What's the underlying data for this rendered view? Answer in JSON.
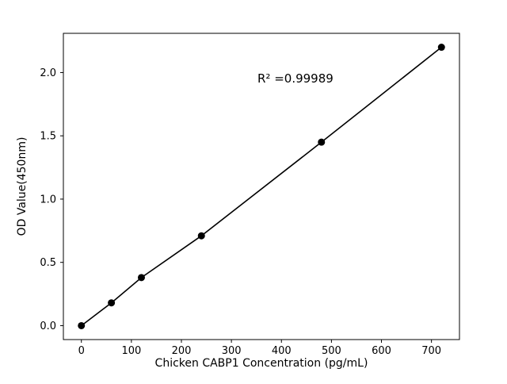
{
  "chart_data": {
    "type": "scatter",
    "title": "",
    "x": [
      0,
      60,
      120,
      240,
      480,
      720
    ],
    "y": [
      0.0,
      0.18,
      0.38,
      0.71,
      1.45,
      2.2
    ],
    "xlabel": "Chicken CABP1 Concentration (pg/mL)",
    "ylabel": "OD Value(450nm)",
    "annotation": "R² =0.99989",
    "xlim": [
      -36,
      756
    ],
    "ylim": [
      -0.11,
      2.31
    ],
    "xticks": [
      0,
      100,
      200,
      300,
      400,
      500,
      600,
      700
    ],
    "yticks": [
      0.0,
      0.5,
      1.0,
      1.5,
      2.0
    ],
    "line": true,
    "grid": false,
    "legend": null,
    "marker": "circle",
    "marker_color": "#000000",
    "line_color": "#000000",
    "axis_color": "#000000",
    "background": "#ffffff"
  }
}
